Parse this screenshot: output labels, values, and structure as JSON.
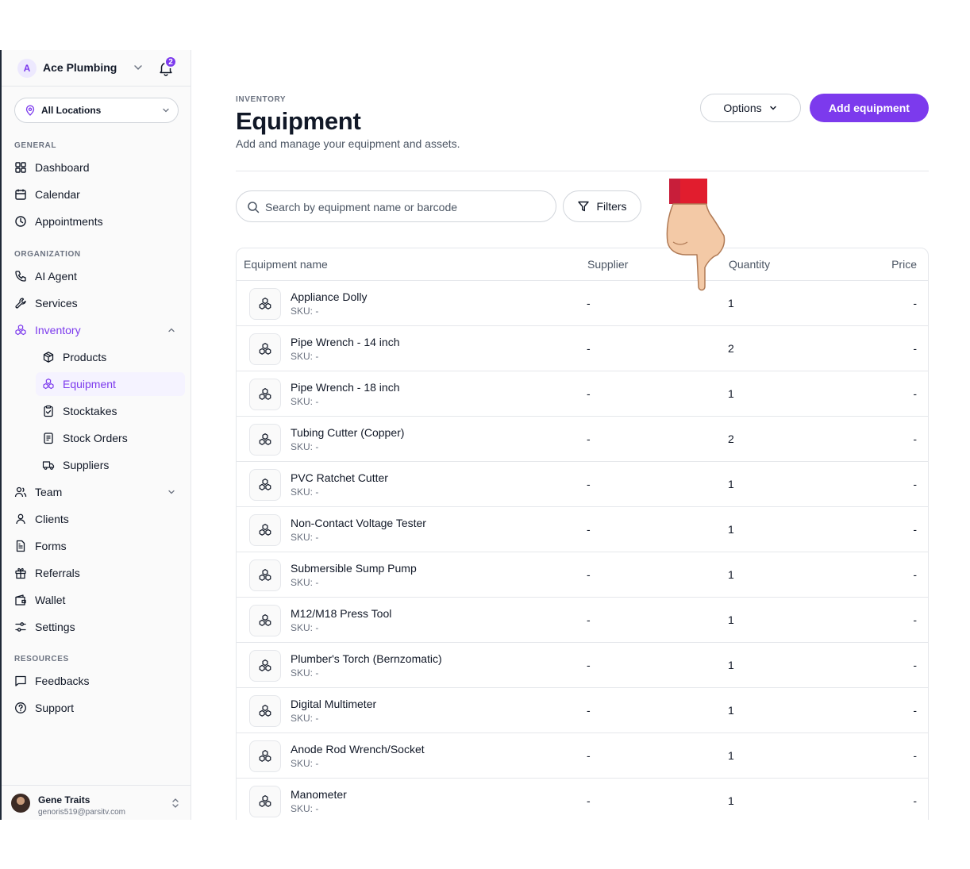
{
  "org": {
    "avatar_letter": "A",
    "name": "Ace Plumbing",
    "notification_count": "2"
  },
  "location": {
    "label": "All Locations"
  },
  "sidebar": {
    "general_label": "GENERAL",
    "organization_label": "ORGANIZATION",
    "resources_label": "RESOURCES",
    "items": {
      "dashboard": "Dashboard",
      "calendar": "Calendar",
      "appointments": "Appointments",
      "ai_agent": "AI Agent",
      "services": "Services",
      "inventory": "Inventory",
      "products": "Products",
      "equipment": "Equipment",
      "stocktakes": "Stocktakes",
      "stock_orders": "Stock Orders",
      "suppliers": "Suppliers",
      "team": "Team",
      "clients": "Clients",
      "forms": "Forms",
      "referrals": "Referrals",
      "wallet": "Wallet",
      "settings": "Settings",
      "feedbacks": "Feedbacks",
      "support": "Support"
    }
  },
  "user": {
    "name": "Gene Traits",
    "email": "genoris519@parsitv.com"
  },
  "header": {
    "eyebrow": "INVENTORY",
    "title": "Equipment",
    "subtitle": "Add and manage your equipment and assets.",
    "options_label": "Options",
    "add_label": "Add equipment"
  },
  "search": {
    "placeholder": "Search by equipment name or barcode",
    "value": ""
  },
  "filters_label": "Filters",
  "table": {
    "columns": {
      "name": "Equipment name",
      "supplier": "Supplier",
      "quantity": "Quantity",
      "price": "Price"
    },
    "rows": [
      {
        "name": "Appliance Dolly",
        "sku": "SKU: -",
        "supplier": "-",
        "quantity": "1",
        "price": "-"
      },
      {
        "name": "Pipe Wrench - 14 inch",
        "sku": "SKU: -",
        "supplier": "-",
        "quantity": "2",
        "price": "-"
      },
      {
        "name": "Pipe Wrench - 18 inch",
        "sku": "SKU: -",
        "supplier": "-",
        "quantity": "1",
        "price": "-"
      },
      {
        "name": "Tubing Cutter (Copper)",
        "sku": "SKU: -",
        "supplier": "-",
        "quantity": "2",
        "price": "-"
      },
      {
        "name": "PVC Ratchet Cutter",
        "sku": "SKU: -",
        "supplier": "-",
        "quantity": "1",
        "price": "-"
      },
      {
        "name": "Non-Contact Voltage Tester",
        "sku": "SKU: -",
        "supplier": "-",
        "quantity": "1",
        "price": "-"
      },
      {
        "name": "Submersible Sump Pump",
        "sku": "SKU: -",
        "supplier": "-",
        "quantity": "1",
        "price": "-"
      },
      {
        "name": "M12/M18 Press Tool",
        "sku": "SKU: -",
        "supplier": "-",
        "quantity": "1",
        "price": "-"
      },
      {
        "name": "Plumber's Torch (Bernzomatic)",
        "sku": "SKU: -",
        "supplier": "-",
        "quantity": "1",
        "price": "-"
      },
      {
        "name": "Digital Multimeter",
        "sku": "SKU: -",
        "supplier": "-",
        "quantity": "1",
        "price": "-"
      },
      {
        "name": "Anode Rod Wrench/Socket",
        "sku": "SKU: -",
        "supplier": "-",
        "quantity": "1",
        "price": "-"
      },
      {
        "name": "Manometer",
        "sku": "SKU: -",
        "supplier": "-",
        "quantity": "1",
        "price": "-"
      }
    ]
  },
  "colors": {
    "accent": "#7c3aed",
    "border": "#e5e7eb",
    "pointer_cuff": "#e11d2e"
  }
}
